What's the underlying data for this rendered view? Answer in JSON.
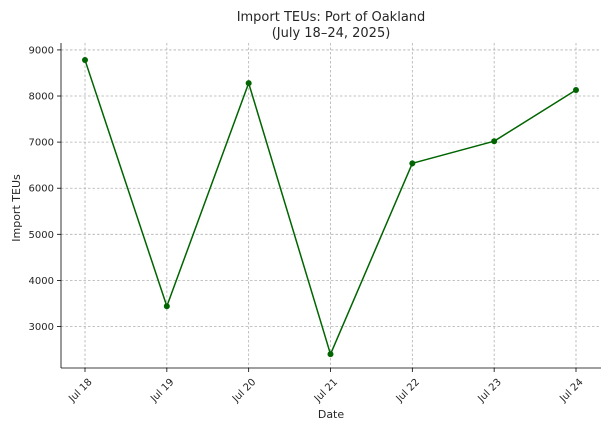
{
  "chart_data": {
    "type": "line",
    "title": "Import TEUs: Port of Oakland",
    "subtitle": "(July 18–24, 2025)",
    "xlabel": "Date",
    "ylabel": "Import TEUs",
    "categories": [
      "Jul 18",
      "Jul 19",
      "Jul 20",
      "Jul 21",
      "Jul 22",
      "Jul 23",
      "Jul 24"
    ],
    "series": [
      {
        "values": [
          8780,
          3440,
          8280,
          2400,
          6540,
          7020,
          8130
        ],
        "color": "#006400"
      }
    ],
    "ylim": [
      2100,
      9150
    ],
    "yticks": [
      3000,
      4000,
      5000,
      6000,
      7000,
      8000,
      9000
    ],
    "ytick_labels": [
      "3000",
      "4000",
      "5000",
      "6000",
      "7000",
      "8000",
      "9000"
    ],
    "grid": true,
    "marker": "circle"
  }
}
